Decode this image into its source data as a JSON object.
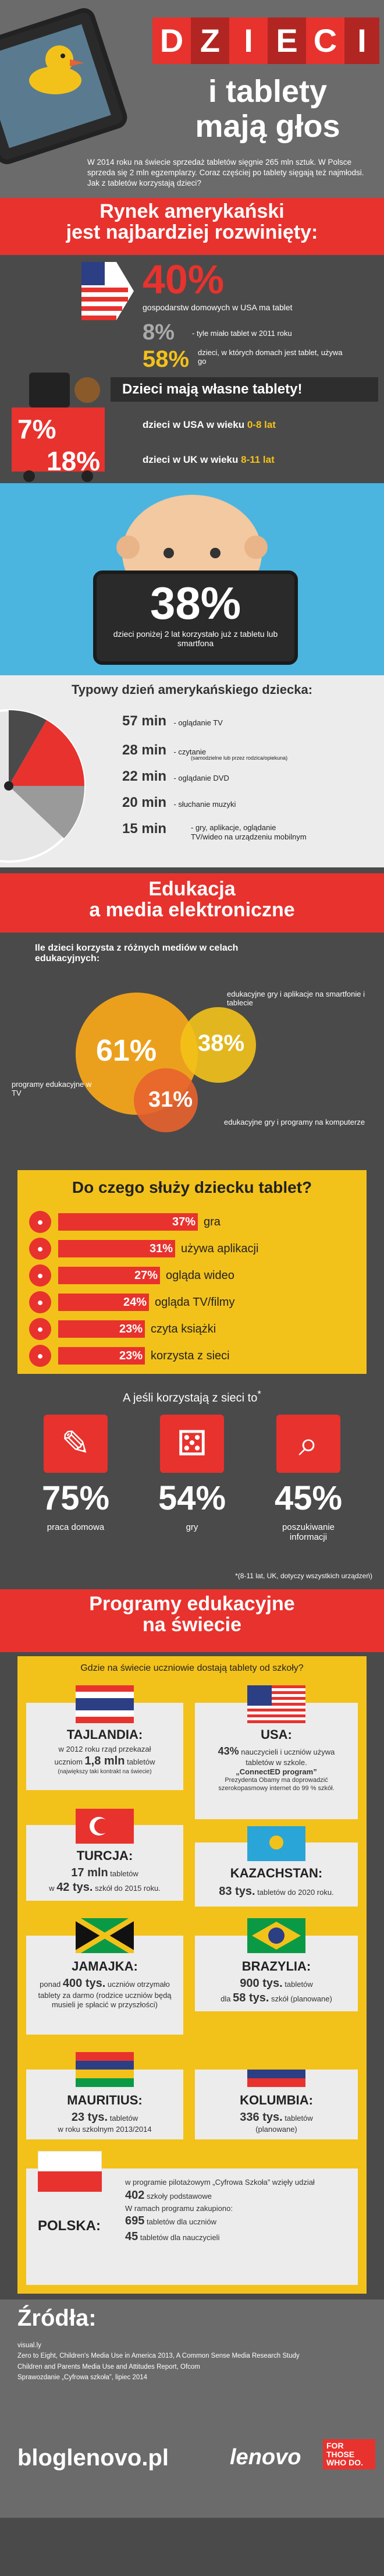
{
  "header": {
    "title_letters": [
      "D",
      "Z",
      "I",
      "E",
      "C",
      "I"
    ],
    "title_line2": "i tablety",
    "title_line3": "mają głos",
    "intro": "W 2014 roku na świecie sprzedaż tabletów sięgnie 265 mln sztuk. W Polsce sprzeda się 2 mln egzemplarzy. Coraz częściej po tablety sięgają też najmłodsi. Jak z tabletów korzystają dzieci?"
  },
  "us_market": {
    "heading_line1": "Rynek amerykański",
    "heading_line2": "jest najbardziej rozwinięty:",
    "stat1_value": "40%",
    "stat1_text": "gospodarstw domowych w USA ma tablet",
    "stat2_value": "8%",
    "stat2_text": "- tyle miało tablet w 2011 roku",
    "stat3_value": "58%",
    "stat3_text": "dzieci, w których domach jest tablet, używa go"
  },
  "own_tablets": {
    "heading": "Dzieci mają własne tablety!",
    "stat1_value": "7%",
    "stat1_text": "dzieci w USA w wieku",
    "stat1_age": "0-8 lat",
    "stat2_value": "18%",
    "stat2_text": "dzieci w UK w wieku",
    "stat2_age": "8-11 lat"
  },
  "baby": {
    "value": "38%",
    "text": "dzieci poniżej 2 lat korzystało już z tabletu lub smartfona"
  },
  "typical_day": {
    "heading": "Typowy dzień amerykańskiego dziecka:",
    "items": [
      {
        "time": "57 min",
        "label": "- oglądanie TV"
      },
      {
        "time": "28 min",
        "label": "- czytanie",
        "sub": "(samodzielne lub przez rodzica/opiekuna)"
      },
      {
        "time": "22 min",
        "label": "- oglądanie DVD"
      },
      {
        "time": "20 min",
        "label": "- słuchanie muzyki"
      },
      {
        "time": "15 min",
        "label": "- gry, aplikacje, oglądanie TV/wideo na urządzeniu mobilnym"
      }
    ]
  },
  "education": {
    "ribbon_line1": "Edukacja",
    "ribbon_line2": "a media elektroniczne",
    "question": "Ile dzieci korzysta z różnych mediów w celach edukacyjnych:",
    "c1_value": "61%",
    "c1_label": "programy edukacyjne w TV",
    "c2_value": "38%",
    "c2_label": "edukacyjne gry i aplikacje na smartfonie i tablecie",
    "c3_value": "31%",
    "c3_label": "edukacyjne gry i programy na komputerze"
  },
  "tablet_use": {
    "heading": "Do czego służy dziecku tablet?",
    "rows": [
      {
        "pct": "37%",
        "label": "gra"
      },
      {
        "pct": "31%",
        "label": "używa aplikacji"
      },
      {
        "pct": "27%",
        "label": "ogląda wideo"
      },
      {
        "pct": "24%",
        "label": "ogląda TV/filmy"
      },
      {
        "pct": "23%",
        "label": "czyta książki"
      },
      {
        "pct": "23%",
        "label": "korzysta z sieci"
      }
    ],
    "icons": [
      "gamepad-icon",
      "apps-icon",
      "video-icon",
      "tv-icon",
      "book-icon",
      "globe-icon"
    ]
  },
  "network": {
    "heading": "A jeśli korzystają z sieci to",
    "heading_mark": "*",
    "items": [
      {
        "value": "75%",
        "label": "praca domowa",
        "icon": "pen-icon"
      },
      {
        "value": "54%",
        "label": "gry",
        "icon": "dice-icon"
      },
      {
        "value": "45%",
        "label": "poszukiwanie informacji",
        "icon": "magnifier-icon"
      }
    ],
    "footnote": "*(8-11 lat, UK, dotyczy wszystkich urządzeń)"
  },
  "programs": {
    "ribbon_line1": "Programy edukacyjne",
    "ribbon_line2": "na świecie",
    "question": "Gdzie na świecie uczniowie dostają tablety od szkoły?",
    "countries": {
      "thailand": {
        "name": "TAJLANDIA:",
        "t1": "w 2012 roku rząd przekazał uczniom",
        "big": "1,8 mln",
        "t2": "tabletów",
        "t3": "(największy taki kontrakt na świecie)"
      },
      "usa": {
        "name": "USA:",
        "t1": "43%",
        "t2": "nauczycieli i uczniów używa tabletów w szkole.",
        "t3": "„ConnectED program”",
        "t4": "Prezydenta Obamy ma doprowadzić szerokopasmowy internet do 99 % szkół."
      },
      "turkey": {
        "name": "TURCJA:",
        "big1": "17 mln",
        "t1": "tabletów",
        "t2": "w",
        "big2": "42 tys.",
        "t3": "szkół do 2015 roku."
      },
      "kazakhstan": {
        "name": "KAZACHSTAN:",
        "big": "83 tys.",
        "t1": "tabletów do 2020 roku."
      },
      "jamaica": {
        "name": "JAMAJKA:",
        "t1": "ponad",
        "big": "400 tys.",
        "t2": "uczniów otrzymało tablety za darmo (rodzice uczniów będą musieli je spłacić w przyszłości)"
      },
      "brazil": {
        "name": "BRAZYLIA:",
        "big1": "900 tys.",
        "t1": "tabletów",
        "t2": "dla",
        "big2": "58 tys.",
        "t3": "szkół (planowane)"
      },
      "mauritius": {
        "name": "MAURITIUS:",
        "big": "23 tys.",
        "t1": "tabletów",
        "t2": "w roku szkolnym 2013/2014"
      },
      "colombia": {
        "name": "KOLUMBIA:",
        "big": "336 tys.",
        "t1": "tabletów",
        "t2": "(planowane)"
      },
      "poland": {
        "name": "POLSKA:",
        "t1": "w programie pilotażowym „Cyfrowa Szkoła” wzięły udział",
        "t2": "402",
        "t3": "szkoły podstawowe",
        "t4": "W ramach programu zakupiono:",
        "big1": "695",
        "t5": "tabletów dla uczniów",
        "big2": "45",
        "t6": "tabletów dla nauczycieli"
      }
    }
  },
  "sources": {
    "heading": "Źródła:",
    "lines": [
      "visual.ly",
      "Zero to Eight, Children's Media Use in America 2013, A Common Sense Media Research Study",
      "Children and Parents Media Use and Attitudes Report, Ofcom",
      "Sprawozdanie „Cyfrowa szkoła”, lipiec 2014"
    ],
    "footer_left": "bloglenovo.pl",
    "brand": "lenovo",
    "brand_tag1": "FOR",
    "brand_tag2": "THOSE",
    "brand_tag3": "WHO DO."
  },
  "colors": {
    "accent": "#e8322e",
    "yellow": "#f3c21a",
    "dark": "#3d3d3d"
  }
}
